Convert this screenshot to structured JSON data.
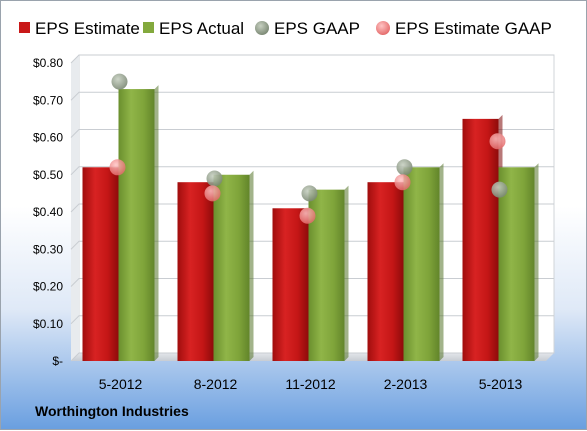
{
  "caption": "Worthington Industries",
  "colors": {
    "estimate": "#c91818",
    "actual": "#83a93d",
    "gaap": "#8c9a84",
    "estimate_gaap": "#f08a8a"
  },
  "chart_data": {
    "type": "bar",
    "categories": [
      "5-2012",
      "8-2012",
      "11-2012",
      "2-2013",
      "5-2013"
    ],
    "series": [
      {
        "name": "EPS Estimate",
        "type": "bar",
        "values": [
          0.52,
          0.48,
          0.41,
          0.48,
          0.65
        ]
      },
      {
        "name": "EPS Actual",
        "type": "bar",
        "values": [
          0.73,
          0.5,
          0.46,
          0.52,
          0.52
        ]
      },
      {
        "name": "EPS GAAP",
        "type": "scatter",
        "values": [
          0.75,
          0.49,
          0.45,
          0.52,
          0.46
        ]
      },
      {
        "name": "EPS Estimate GAAP",
        "type": "scatter",
        "values": [
          0.52,
          0.45,
          0.39,
          0.48,
          0.59
        ]
      }
    ],
    "ylim": [
      0,
      0.8
    ],
    "yticks": [
      0,
      0.1,
      0.2,
      0.3,
      0.4,
      0.5,
      0.6,
      0.7,
      0.8
    ],
    "ytick_labels": [
      "$-",
      "$0.10",
      "$0.20",
      "$0.30",
      "$0.40",
      "$0.50",
      "$0.60",
      "$0.70",
      "$0.80"
    ],
    "grid": true,
    "legend": "top"
  }
}
